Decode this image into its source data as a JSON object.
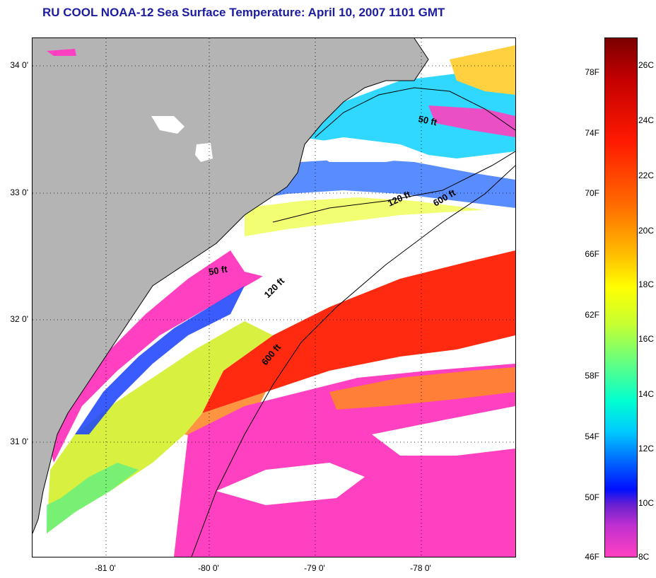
{
  "title": "RU COOL  NOAA-12  Sea Surface Temperature:  April 10, 2007 1101 GMT",
  "latitude_labels": [
    "34 0'",
    "33 0'",
    "32 0'",
    "31 0'"
  ],
  "longitude_labels": [
    "-81 0'",
    "-80 0'",
    "-79 0'",
    "-78 0'"
  ],
  "contour_labels": [
    "50 ft",
    "120 ft",
    "600 ft",
    "50 ft",
    "120 ft",
    "600 ft"
  ],
  "colorbar": {
    "fahrenheit": [
      "78F",
      "74F",
      "70F",
      "66F",
      "62F",
      "58F",
      "54F",
      "50F",
      "46F"
    ],
    "celsius": [
      "26C",
      "24C",
      "22C",
      "20C",
      "18C",
      "16C",
      "14C",
      "12C",
      "10C",
      "8C"
    ]
  },
  "colors": {
    "land": "#b4b4b4",
    "cloud": "#ffffff",
    "title": "#1c1ca0"
  }
}
